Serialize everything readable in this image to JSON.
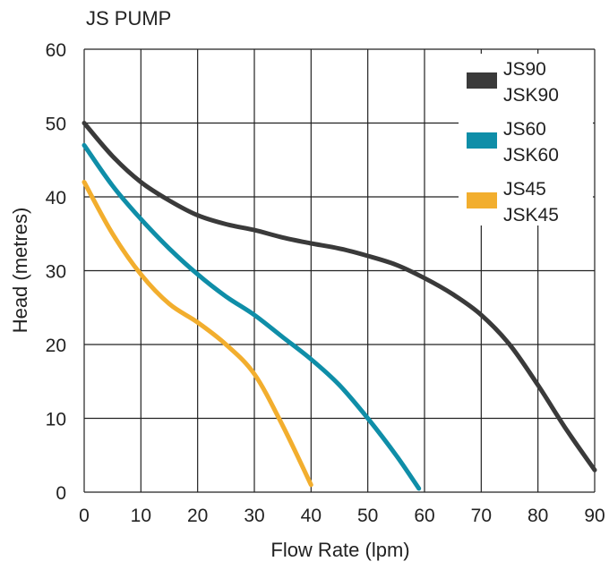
{
  "chart_data": {
    "type": "line",
    "title": "JS PUMP",
    "xlabel": "Flow Rate (lpm)",
    "ylabel": "Head (metres)",
    "xlim": [
      0,
      90
    ],
    "ylim": [
      0,
      60
    ],
    "xticks": [
      0,
      10,
      20,
      30,
      40,
      50,
      60,
      70,
      80,
      90
    ],
    "yticks": [
      0,
      10,
      20,
      30,
      40,
      50,
      60
    ],
    "grid": true,
    "legend_position": "top-right",
    "series": [
      {
        "name": "JS90 JSK90",
        "label_lines": [
          "JS90",
          "JSK90"
        ],
        "color": "#3a3a3a",
        "x": [
          0,
          5,
          10,
          15,
          20,
          25,
          30,
          35,
          40,
          45,
          50,
          55,
          60,
          65,
          70,
          75,
          80,
          85,
          90
        ],
        "y": [
          50,
          45.5,
          42,
          39.5,
          37.5,
          36.3,
          35.5,
          34.5,
          33.7,
          33,
          32,
          30.8,
          29,
          26.8,
          24,
          20,
          14.5,
          8.5,
          3
        ]
      },
      {
        "name": "JS60 JSK60",
        "label_lines": [
          "JS60",
          "JSK60"
        ],
        "color": "#0f8ea8",
        "x": [
          0,
          5,
          10,
          15,
          20,
          25,
          30,
          35,
          40,
          45,
          50,
          55,
          59
        ],
        "y": [
          47,
          41.5,
          37,
          33,
          29.5,
          26.5,
          24,
          21,
          18,
          14.5,
          10,
          5,
          0.5
        ]
      },
      {
        "name": "JS45 JSK45",
        "label_lines": [
          "JS45",
          "JSK45"
        ],
        "color": "#f2ae2e",
        "x": [
          0,
          5,
          10,
          15,
          20,
          25,
          30,
          35,
          40
        ],
        "y": [
          42,
          35,
          29.5,
          25.5,
          23,
          20,
          16,
          9,
          1
        ]
      }
    ]
  }
}
